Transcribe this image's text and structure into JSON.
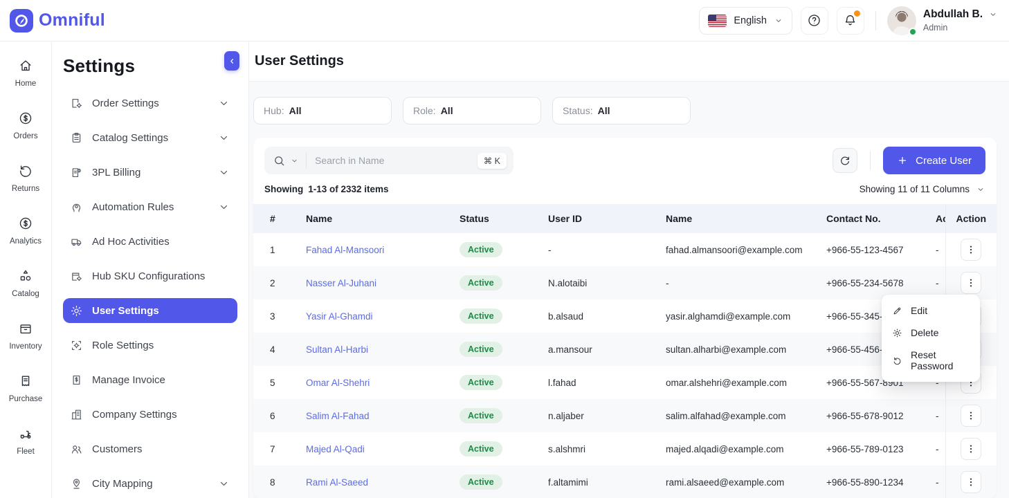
{
  "colors": {
    "accent": "#5157E8",
    "link": "#5B6BE8",
    "badge_bg": "#E2F0E5",
    "badge_text": "#1D8A47",
    "notification_dot": "#F7941D",
    "online_dot": "#23A455"
  },
  "brand": {
    "name": "Omniful",
    "logo_icon": "omniful-logo"
  },
  "header": {
    "language": {
      "label": "English",
      "flag_icon": "us-flag"
    },
    "help_icon": "question-icon",
    "notifications_icon": "bell-icon",
    "has_unread_notifications": true,
    "user": {
      "name": "Abdullah B.",
      "role": "Admin",
      "online": true
    }
  },
  "nav_rail": {
    "items": [
      {
        "icon": "home",
        "label": "Home"
      },
      {
        "icon": "dollar",
        "label": "Orders"
      },
      {
        "icon": "returns",
        "label": "Returns"
      },
      {
        "icon": "dollar",
        "label": "Analytics"
      },
      {
        "icon": "catalog",
        "label": "Catalog"
      },
      {
        "icon": "inventory",
        "label": "Inventory"
      },
      {
        "icon": "purchase",
        "label": "Purchase"
      },
      {
        "icon": "fleet",
        "label": "Fleet"
      }
    ]
  },
  "sidebar": {
    "title": "Settings",
    "items": [
      {
        "icon": "doc-gear",
        "label": "Order Settings",
        "expandable": true,
        "active": false
      },
      {
        "icon": "clipboard",
        "label": "Catalog Settings",
        "expandable": true,
        "active": false
      },
      {
        "icon": "billing",
        "label": "3PL Billing",
        "expandable": true,
        "active": false
      },
      {
        "icon": "gear-head",
        "label": "Automation Rules",
        "expandable": true,
        "active": false
      },
      {
        "icon": "truck",
        "label": "Ad Hoc Activities",
        "expandable": false,
        "active": false
      },
      {
        "icon": "box-gear",
        "label": "Hub SKU Configurations",
        "expandable": false,
        "active": false
      },
      {
        "icon": "gear",
        "label": "User Settings",
        "expandable": false,
        "active": true
      },
      {
        "icon": "gear-frame",
        "label": "Role Settings",
        "expandable": false,
        "active": false
      },
      {
        "icon": "invoice",
        "label": "Manage Invoice",
        "expandable": false,
        "active": false
      },
      {
        "icon": "building",
        "label": "Company Settings",
        "expandable": false,
        "active": false
      },
      {
        "icon": "users",
        "label": "Customers",
        "expandable": false,
        "active": false
      },
      {
        "icon": "pin",
        "label": "City Mapping",
        "expandable": true,
        "active": false
      }
    ]
  },
  "page": {
    "title": "User Settings"
  },
  "filters": {
    "items": [
      {
        "label": "Hub:",
        "value": "All"
      },
      {
        "label": "Role:",
        "value": "All"
      },
      {
        "label": "Status:",
        "value": "All"
      }
    ]
  },
  "toolbar": {
    "search_placeholder": "Search in Name",
    "shortcut": "⌘ K",
    "create_button": "Create User"
  },
  "list_meta": {
    "showing_label": "Showing",
    "showing_range": "1-13 of 2332 items",
    "columns_summary": "Showing 11 of 11 Columns"
  },
  "table": {
    "columns": [
      "#",
      "Name",
      "Status",
      "User ID",
      "Name",
      "Contact No.",
      "Ac",
      "Action"
    ],
    "rows": [
      {
        "num": "1",
        "name": "Fahad Al-Mansoori",
        "status": "Active",
        "user_id": "-",
        "email": "fahad.almansoori@example.com",
        "contact": "+966-55-123-4567",
        "extra": "-"
      },
      {
        "num": "2",
        "name": "Nasser Al-Juhani",
        "status": "Active",
        "user_id": "N.alotaibi",
        "email": "-",
        "contact": "+966-55-234-5678",
        "extra": "-"
      },
      {
        "num": "3",
        "name": "Yasir Al-Ghamdi",
        "status": "Active",
        "user_id": "b.alsaud",
        "email": "yasir.alghamdi@example.com",
        "contact": "+966-55-345-6789",
        "extra": "-"
      },
      {
        "num": "4",
        "name": "Sultan Al-Harbi",
        "status": "Active",
        "user_id": "a.mansour",
        "email": "sultan.alharbi@example.com",
        "contact": "+966-55-456-7890",
        "extra": "-"
      },
      {
        "num": "5",
        "name": "Omar Al-Shehri",
        "status": "Active",
        "user_id": "l.fahad",
        "email": "omar.alshehri@example.com",
        "contact": "+966-55-567-8901",
        "extra": "-"
      },
      {
        "num": "6",
        "name": "Salim Al-Fahad",
        "status": "Active",
        "user_id": "n.aljaber",
        "email": "salim.alfahad@example.com",
        "contact": "+966-55-678-9012",
        "extra": "-"
      },
      {
        "num": "7",
        "name": "Majed Al-Qadi",
        "status": "Active",
        "user_id": "s.alshmri",
        "email": "majed.alqadi@example.com",
        "contact": "+966-55-789-0123",
        "extra": "-"
      },
      {
        "num": "8",
        "name": "Rami Al-Saeed",
        "status": "Active",
        "user_id": "f.altamimi",
        "email": "rami.alsaeed@example.com",
        "contact": "+966-55-890-1234",
        "extra": "-"
      }
    ]
  },
  "context_menu": {
    "items": [
      {
        "icon": "edit",
        "label": "Edit"
      },
      {
        "icon": "gear",
        "label": "Delete"
      },
      {
        "icon": "reset",
        "label": "Reset Password"
      }
    ]
  }
}
